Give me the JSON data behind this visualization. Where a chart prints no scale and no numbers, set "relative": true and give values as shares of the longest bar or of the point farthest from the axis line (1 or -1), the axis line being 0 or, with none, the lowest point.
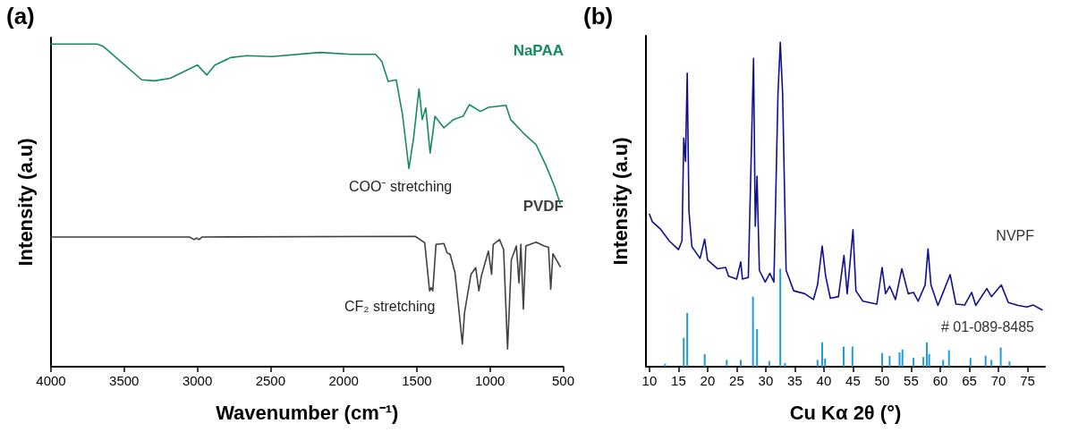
{
  "chart_data": [
    {
      "type": "line",
      "title": "(a)",
      "xlabel": "Wavenumber (cm⁻¹)",
      "ylabel": "Intensity (a.u)",
      "relative": true,
      "tick_labels": "x",
      "grid": false,
      "legend": false,
      "xlim": [
        4000,
        500
      ],
      "xticks": [
        4000,
        3500,
        3000,
        2500,
        2000,
        1500,
        1000,
        500
      ],
      "annotations": [
        "COO⁻ stretching",
        "CF₂ stretching"
      ],
      "series": [
        {
          "name": "NaPAA",
          "color": "#168a5f",
          "x": [
            4000,
            3685,
            3641,
            3380,
            3293,
            3185,
            3000,
            2935,
            2880,
            2772,
            2663,
            2489,
            2163,
            1946,
            1782,
            1739,
            1696,
            1641,
            1598,
            1554,
            1522,
            1485,
            1463,
            1439,
            1409,
            1376,
            1315,
            1250,
            1185,
            1141,
            1065,
            1011,
            891,
            859,
            772,
            685,
            620,
            560,
            520
          ],
          "values": [
            1.0,
            1.0,
            0.992,
            0.889,
            0.886,
            0.894,
            0.935,
            0.904,
            0.935,
            0.958,
            0.964,
            0.961,
            0.974,
            0.968,
            0.968,
            0.946,
            0.884,
            0.889,
            0.781,
            0.614,
            0.709,
            0.861,
            0.766,
            0.802,
            0.662,
            0.776,
            0.74,
            0.766,
            0.776,
            0.812,
            0.791,
            0.804,
            0.81,
            0.766,
            0.724,
            0.688,
            0.626,
            0.56,
            0.505
          ]
        },
        {
          "name": "PVDF",
          "color": "#404040",
          "x": [
            4000,
            3054,
            3022,
            3006,
            2989,
            2967,
            1511,
            1446,
            1413,
            1402,
            1391,
            1369,
            1315,
            1293,
            1272,
            1239,
            1206,
            1189,
            1174,
            1130,
            1098,
            1076,
            1059,
            1011,
            989,
            978,
            935,
            907,
            880,
            854,
            820,
            802,
            789,
            772,
            755,
            685,
            630,
            600,
            585,
            570,
            520
          ],
          "values": [
            0.402,
            0.402,
            0.394,
            0.399,
            0.394,
            0.402,
            0.404,
            0.384,
            0.235,
            0.245,
            0.235,
            0.379,
            0.382,
            0.353,
            0.348,
            0.291,
            0.147,
            0.07,
            0.168,
            0.286,
            0.307,
            0.235,
            0.281,
            0.358,
            0.286,
            0.379,
            0.394,
            0.363,
            0.055,
            0.332,
            0.374,
            0.26,
            0.379,
            0.178,
            0.374,
            0.386,
            0.374,
            0.37,
            0.24,
            0.35,
            0.31
          ]
        }
      ]
    },
    {
      "type": "line",
      "title": "(b)",
      "xlabel": "Cu Kα 2θ (°)",
      "ylabel": "Intensity (a.u)",
      "relative": true,
      "tick_labels": "x",
      "grid": false,
      "legend": false,
      "xlim": [
        9.4,
        78
      ],
      "xticks": [
        10,
        15,
        20,
        25,
        30,
        35,
        40,
        45,
        50,
        55,
        60,
        65,
        70,
        75
      ],
      "series": [
        {
          "name": "NVPF",
          "color": "#10108f",
          "x": [
            10.0,
            10.5,
            11.9,
            13.4,
            15.0,
            15.6,
            15.9,
            16.2,
            16.5,
            16.8,
            17.3,
            18.7,
            19.5,
            20.0,
            21.7,
            23.1,
            23.6,
            25.0,
            25.7,
            26.0,
            27.0,
            27.9,
            28.2,
            28.5,
            28.9,
            29.9,
            30.7,
            31.4,
            32.1,
            32.5,
            32.9,
            33.5,
            34.8,
            36.7,
            38.2,
            38.9,
            39.7,
            40.3,
            41.1,
            42.5,
            43.45,
            44.0,
            45.0,
            45.5,
            46.7,
            49.1,
            50.0,
            50.6,
            51.3,
            52.3,
            53.4,
            54.5,
            55.4,
            56.2,
            57.4,
            57.9,
            58.4,
            59.6,
            60.6,
            61.7,
            62.7,
            64.2,
            65.4,
            66.1,
            68.0,
            68.8,
            70.5,
            71.7,
            73.4,
            74.9,
            76.0,
            77.5
          ],
          "values": [
            0.47,
            0.447,
            0.424,
            0.388,
            0.361,
            0.388,
            0.705,
            0.633,
            0.905,
            0.479,
            0.37,
            0.334,
            0.393,
            0.329,
            0.302,
            0.306,
            0.279,
            0.27,
            0.323,
            0.27,
            0.275,
            0.95,
            0.433,
            0.587,
            0.297,
            0.261,
            0.288,
            0.261,
            0.841,
            1.0,
            0.841,
            0.297,
            0.234,
            0.225,
            0.207,
            0.252,
            0.372,
            0.279,
            0.211,
            0.216,
            0.343,
            0.225,
            0.422,
            0.234,
            0.202,
            0.193,
            0.306,
            0.225,
            0.248,
            0.207,
            0.302,
            0.225,
            0.229,
            0.202,
            0.252,
            0.363,
            0.252,
            0.189,
            0.234,
            0.284,
            0.193,
            0.19,
            0.229,
            0.189,
            0.241,
            0.216,
            0.252,
            0.198,
            0.189,
            0.184,
            0.19,
            0.175
          ]
        },
        {
          "name": "# 01-089-8485",
          "type": "bar",
          "color": "#1e9be0",
          "x": [
            12.7,
            15.9,
            16.5,
            19.5,
            23.3,
            25.7,
            27.8,
            28.5,
            30.6,
            32.5,
            33.3,
            38.9,
            39.7,
            40.2,
            43.4,
            44.9,
            50.0,
            51.3,
            53.0,
            53.5,
            55.4,
            57.1,
            57.7,
            58.1,
            60.5,
            61.5,
            65.2,
            67.8,
            68.8,
            70.4,
            71.9
          ],
          "values": [
            0.009,
            0.089,
            0.166,
            0.039,
            0.021,
            0.021,
            0.216,
            0.116,
            0.018,
            0.302,
            0.012,
            0.021,
            0.075,
            0.025,
            0.062,
            0.062,
            0.042,
            0.033,
            0.044,
            0.053,
            0.027,
            0.03,
            0.075,
            0.039,
            0.021,
            0.051,
            0.027,
            0.034,
            0.021,
            0.059,
            0.016
          ]
        }
      ]
    }
  ]
}
